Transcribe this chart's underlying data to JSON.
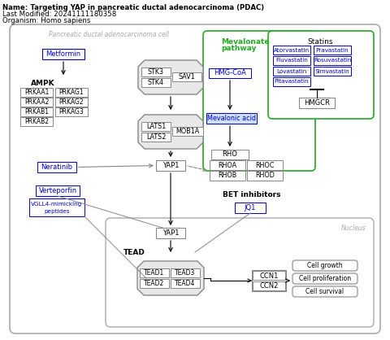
{
  "title_line1": "Name: Targeting YAP in pancreatic ductal adenocarcinoma (PDAC)",
  "title_line2": "Last Modified: 20241111180358",
  "title_line3": "Organism: Homo sapiens",
  "cell_label": "Pancreatic ductal adenocarcinoma cell",
  "bg_color": "#ffffff"
}
